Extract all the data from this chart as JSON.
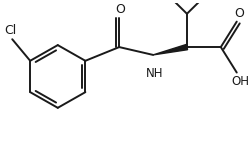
{
  "bg_color": "#ffffff",
  "line_color": "#1a1a1a",
  "text_color": "#1a1a1a",
  "lw": 1.4,
  "fs": 8.5,
  "figsize": [
    2.52,
    1.47
  ],
  "dpi": 100,
  "xlim": [
    0,
    252
  ],
  "ylim": [
    0,
    147
  ]
}
